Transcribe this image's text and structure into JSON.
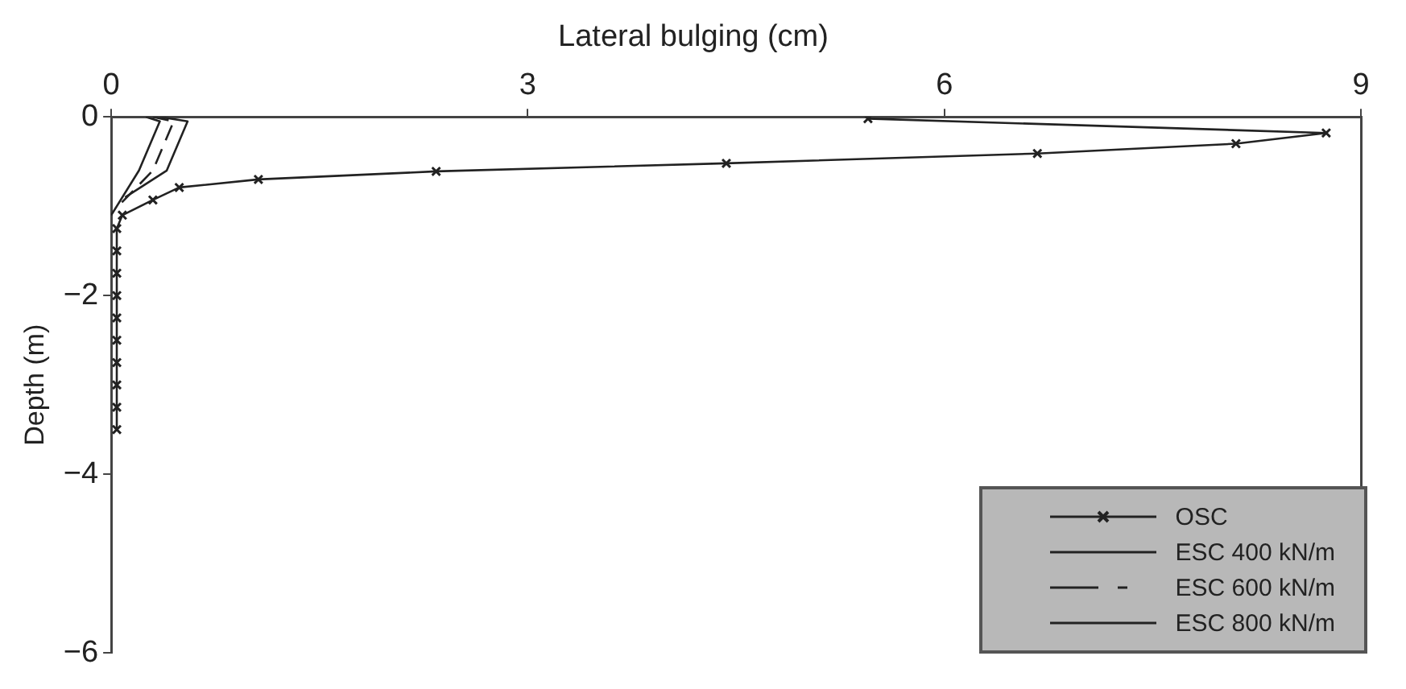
{
  "chart_data": {
    "type": "line",
    "title": "Lateral bulging (cm)",
    "ylabel": "Depth (m)",
    "xlim": [
      0,
      9
    ],
    "xticks": [
      0,
      3,
      6,
      9
    ],
    "ylim": [
      -6,
      0
    ],
    "yticks": [
      -6,
      -4,
      -2,
      0
    ],
    "grid": false,
    "legend": "bottom right",
    "series": [
      {
        "name": "OSC",
        "color": "#222222",
        "marker": "cross",
        "line_style": "solid",
        "x": [
          5.45,
          8.75,
          8.1,
          6.67,
          4.43,
          2.34,
          1.06,
          0.49,
          0.3,
          0.08,
          0.04,
          0.04,
          0.04,
          0.04,
          0.04,
          0.04,
          0.04,
          0.04,
          0.04,
          0.04
        ],
        "values": [
          -0.02,
          -0.18,
          -0.3,
          -0.41,
          -0.52,
          -0.61,
          -0.7,
          -0.79,
          -0.93,
          -1.1,
          -1.25,
          -1.5,
          -1.75,
          -2,
          -2.25,
          -2.5,
          -2.75,
          -3,
          -3.25,
          -3.5
        ]
      },
      {
        "name": "ESC 400 kN/m",
        "color": "#222222",
        "marker": "none",
        "line_style": "solid",
        "x": [
          0.25,
          0.35,
          0.2,
          0
        ],
        "values": [
          0,
          -0.05,
          -0.6,
          -1.1
        ]
      },
      {
        "name": "ESC 600 kN/m",
        "color": "#222222",
        "marker": "none",
        "line_style": "dashed",
        "x": [
          0.3,
          0.45,
          0.3,
          0.05
        ],
        "values": [
          0,
          -0.05,
          -0.6,
          -1
        ]
      },
      {
        "name": "ESC 800 kN/m",
        "color": "#222222",
        "marker": "none",
        "line_style": "solid",
        "x": [
          0.35,
          0.55,
          0.4,
          0.1
        ],
        "values": [
          0,
          -0.05,
          -0.6,
          -0.9
        ]
      }
    ]
  }
}
